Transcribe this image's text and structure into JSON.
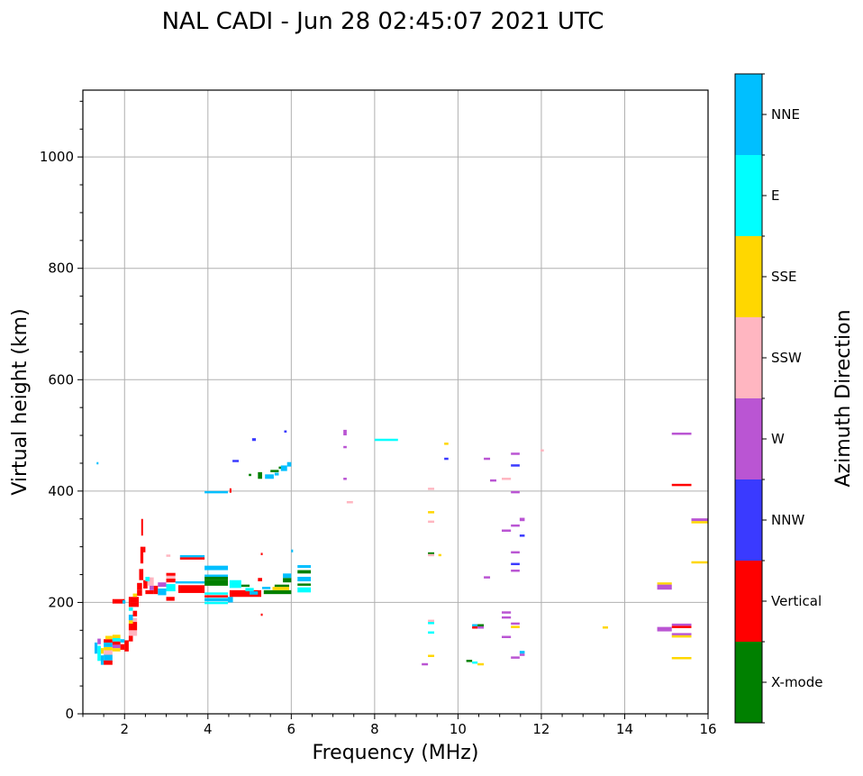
{
  "chart_data": {
    "type": "scatter",
    "title": "NAL CADI - Jun 28 02:45:07 2021 UTC",
    "xlabel": "Frequency (MHz)",
    "ylabel": "Virtual height (km)",
    "xlim": [
      1,
      16
    ],
    "ylim": [
      0,
      1120
    ],
    "grid": true,
    "x_ticks": [
      2,
      4,
      6,
      8,
      10,
      12,
      14,
      16
    ],
    "x_tick_labels": [
      "2",
      "4",
      "6",
      "8",
      "10",
      "12",
      "14",
      "16"
    ],
    "x_minor_step": 0.5,
    "y_ticks": [
      0,
      200,
      400,
      600,
      800,
      1000
    ],
    "y_tick_labels": [
      "0",
      "200",
      "400",
      "600",
      "800",
      "1000"
    ],
    "y_minor_step": 50,
    "colorbar": {
      "label": "Azimuth Direction",
      "placement": "right",
      "categories": [
        {
          "name": "NNE",
          "color": "#00bfff"
        },
        {
          "name": "E",
          "color": "#00ffff"
        },
        {
          "name": "SSE",
          "color": "#ffd700"
        },
        {
          "name": "SSW",
          "color": "#ffb6c1"
        },
        {
          "name": "W",
          "color": "#ba55d3"
        },
        {
          "name": "NNW",
          "color": "#3a3aff"
        },
        {
          "name": "Vertical",
          "color": "#ff0000"
        },
        {
          "name": "X-mode",
          "color": "#008000"
        }
      ]
    },
    "segment_fields": [
      "freq_start_MHz",
      "freq_end_MHz",
      "height_low_km",
      "height_high_km",
      "direction"
    ],
    "segments": [
      [
        1.28,
        1.35,
        108,
        128,
        "NNE"
      ],
      [
        1.35,
        1.43,
        95,
        122,
        "E"
      ],
      [
        1.35,
        1.43,
        125,
        135,
        "W"
      ],
      [
        1.43,
        1.5,
        88,
        105,
        "NNE"
      ],
      [
        1.43,
        1.5,
        108,
        118,
        "SSE"
      ],
      [
        1.5,
        1.71,
        88,
        96,
        "Vertical"
      ],
      [
        1.5,
        1.71,
        96,
        106,
        "NNE"
      ],
      [
        1.5,
        1.71,
        106,
        114,
        "SSW"
      ],
      [
        1.5,
        1.71,
        114,
        120,
        "SSE"
      ],
      [
        1.5,
        1.71,
        120,
        128,
        "NNE"
      ],
      [
        1.5,
        1.71,
        128,
        134,
        "Vertical"
      ],
      [
        1.54,
        1.71,
        134,
        140,
        "SSE"
      ],
      [
        1.71,
        1.9,
        112,
        118,
        "SSE"
      ],
      [
        1.71,
        1.9,
        118,
        124,
        "W"
      ],
      [
        1.71,
        1.9,
        124,
        130,
        "Vertical"
      ],
      [
        1.71,
        1.9,
        130,
        136,
        "E"
      ],
      [
        1.71,
        1.9,
        136,
        142,
        "SSE"
      ],
      [
        1.9,
        2.0,
        115,
        125,
        "Vertical"
      ],
      [
        1.9,
        2.0,
        128,
        134,
        "NNE"
      ],
      [
        2.0,
        2.1,
        112,
        132,
        "Vertical"
      ],
      [
        1.71,
        2.0,
        198,
        206,
        "Vertical"
      ],
      [
        1.95,
        2.02,
        198,
        204,
        "NNE"
      ],
      [
        2.1,
        2.2,
        130,
        140,
        "Vertical"
      ],
      [
        2.1,
        2.2,
        140,
        150,
        "SSW"
      ],
      [
        2.1,
        2.2,
        150,
        162,
        "Vertical"
      ],
      [
        2.1,
        2.2,
        162,
        168,
        "SSE"
      ],
      [
        2.1,
        2.2,
        168,
        178,
        "NNE"
      ],
      [
        2.2,
        2.3,
        140,
        150,
        "SSW"
      ],
      [
        2.2,
        2.3,
        150,
        165,
        "Vertical"
      ],
      [
        2.2,
        2.3,
        165,
        172,
        "SSW"
      ],
      [
        2.2,
        2.3,
        175,
        185,
        "Vertical"
      ],
      [
        2.1,
        2.2,
        185,
        191,
        "E"
      ],
      [
        2.1,
        2.34,
        192,
        200,
        "Vertical"
      ],
      [
        2.1,
        2.34,
        200,
        210,
        "Vertical"
      ],
      [
        2.2,
        2.3,
        210,
        216,
        "SSE"
      ],
      [
        2.3,
        2.42,
        212,
        222,
        "Vertical"
      ],
      [
        2.3,
        2.42,
        222,
        235,
        "Vertical"
      ],
      [
        2.35,
        2.45,
        240,
        260,
        "Vertical"
      ],
      [
        2.38,
        2.45,
        270,
        300,
        "Vertical"
      ],
      [
        2.4,
        2.44,
        320,
        350,
        "Vertical"
      ],
      [
        2.45,
        2.5,
        290,
        300,
        "Vertical"
      ],
      [
        2.45,
        2.55,
        225,
        240,
        "Vertical"
      ],
      [
        2.5,
        2.7,
        215,
        222,
        "Vertical"
      ],
      [
        2.55,
        2.7,
        230,
        245,
        "SSW"
      ],
      [
        2.5,
        2.6,
        238,
        246,
        "E"
      ],
      [
        2.6,
        2.7,
        222,
        230,
        "W"
      ],
      [
        2.7,
        2.8,
        215,
        230,
        "Vertical"
      ],
      [
        2.8,
        3.0,
        213,
        225,
        "NNE"
      ],
      [
        2.8,
        3.0,
        228,
        236,
        "W"
      ],
      [
        3.0,
        3.22,
        220,
        233,
        "E"
      ],
      [
        3.0,
        3.22,
        236,
        243,
        "Vertical"
      ],
      [
        3.0,
        3.22,
        244,
        248,
        "SSW"
      ],
      [
        3.0,
        3.22,
        248,
        253,
        "Vertical"
      ],
      [
        3.0,
        3.2,
        203,
        210,
        "Vertical"
      ],
      [
        3.0,
        3.1,
        282,
        286,
        "SSW"
      ],
      [
        3.29,
        3.92,
        217,
        231,
        "Vertical"
      ],
      [
        3.22,
        3.92,
        234,
        238,
        "NNE"
      ],
      [
        3.33,
        3.92,
        281,
        285,
        "NNE"
      ],
      [
        3.33,
        3.92,
        277,
        281,
        "Vertical"
      ],
      [
        3.92,
        4.48,
        258,
        266,
        "NNE"
      ],
      [
        3.92,
        4.48,
        246,
        250,
        "NNE"
      ],
      [
        3.92,
        4.48,
        241,
        246,
        "X-mode"
      ],
      [
        3.92,
        4.48,
        230,
        241,
        "X-mode"
      ],
      [
        3.92,
        4.48,
        214,
        218,
        "E"
      ],
      [
        3.92,
        4.48,
        209,
        213,
        "Vertical"
      ],
      [
        3.92,
        4.48,
        202,
        208,
        "NNE"
      ],
      [
        3.92,
        4.48,
        197,
        201,
        "E"
      ],
      [
        4.48,
        4.6,
        200,
        210,
        "NNE"
      ],
      [
        4.52,
        4.8,
        226,
        240,
        "E"
      ],
      [
        4.52,
        5.28,
        210,
        222,
        "Vertical"
      ],
      [
        4.8,
        5.0,
        228,
        232,
        "X-mode"
      ],
      [
        4.9,
        5.1,
        220,
        226,
        "E"
      ],
      [
        5.0,
        5.2,
        214,
        220,
        "NNE"
      ],
      [
        5.2,
        5.3,
        238,
        244,
        "Vertical"
      ],
      [
        5.3,
        5.5,
        224,
        228,
        "NNE"
      ],
      [
        5.34,
        6.0,
        215,
        222,
        "X-mode"
      ],
      [
        5.55,
        5.95,
        222,
        228,
        "SSE"
      ],
      [
        5.6,
        5.95,
        228,
        232,
        "X-mode"
      ],
      [
        5.8,
        6.0,
        236,
        244,
        "X-mode"
      ],
      [
        5.8,
        6.0,
        244,
        252,
        "NNE"
      ],
      [
        6.15,
        6.47,
        262,
        267,
        "NNE"
      ],
      [
        6.15,
        6.47,
        252,
        258,
        "X-mode"
      ],
      [
        6.15,
        6.47,
        238,
        246,
        "NNE"
      ],
      [
        6.15,
        6.47,
        231,
        234,
        "X-mode"
      ],
      [
        6.15,
        6.47,
        218,
        227,
        "E"
      ],
      [
        5.27,
        5.3,
        176,
        180,
        "Vertical"
      ],
      [
        5.27,
        5.3,
        285,
        289,
        "Vertical"
      ],
      [
        6.0,
        6.03,
        290,
        295,
        "NNE"
      ],
      [
        1.33,
        1.36,
        449,
        452,
        "NNE"
      ],
      [
        3.92,
        4.48,
        396,
        400,
        "NNE"
      ],
      [
        4.52,
        4.56,
        397,
        405,
        "Vertical"
      ],
      [
        4.59,
        4.74,
        452,
        456,
        "NNW"
      ],
      [
        5.06,
        5.15,
        490,
        495,
        "NNW"
      ],
      [
        5.83,
        5.89,
        506,
        509,
        "NNW"
      ],
      [
        4.98,
        5.04,
        428,
        431,
        "X-mode"
      ],
      [
        5.2,
        5.3,
        422,
        434,
        "X-mode"
      ],
      [
        5.37,
        5.58,
        422,
        430,
        "NNE"
      ],
      [
        5.5,
        5.7,
        434,
        438,
        "X-mode"
      ],
      [
        5.6,
        5.7,
        428,
        433,
        "NNE"
      ],
      [
        5.7,
        5.78,
        440,
        444,
        "X-mode"
      ],
      [
        5.75,
        5.9,
        436,
        446,
        "NNE"
      ],
      [
        5.9,
        6.0,
        444,
        452,
        "NNE"
      ],
      [
        7.25,
        7.33,
        500,
        510,
        "W"
      ],
      [
        7.25,
        7.33,
        477,
        481,
        "W"
      ],
      [
        7.25,
        7.33,
        420,
        424,
        "W"
      ],
      [
        7.33,
        7.48,
        378,
        382,
        "SSW"
      ],
      [
        8.0,
        8.56,
        490,
        494,
        "E"
      ],
      [
        9.67,
        9.77,
        483,
        487,
        "SSE"
      ],
      [
        9.67,
        9.77,
        456,
        460,
        "NNW"
      ],
      [
        9.28,
        9.43,
        402,
        406,
        "SSW"
      ],
      [
        9.28,
        9.43,
        360,
        364,
        "SSE"
      ],
      [
        9.28,
        9.43,
        343,
        347,
        "SSW"
      ],
      [
        9.28,
        9.43,
        287,
        290,
        "X-mode"
      ],
      [
        9.28,
        9.43,
        283,
        287,
        "SSW"
      ],
      [
        9.53,
        9.6,
        283,
        287,
        "SSE"
      ],
      [
        10.62,
        10.77,
        456,
        460,
        "W"
      ],
      [
        11.27,
        11.48,
        465,
        469,
        "W"
      ],
      [
        11.27,
        11.48,
        444,
        448,
        "NNW"
      ],
      [
        10.77,
        10.92,
        417,
        421,
        "W"
      ],
      [
        11.05,
        11.27,
        420,
        424,
        "SSW"
      ],
      [
        11.27,
        11.48,
        396,
        400,
        "W"
      ],
      [
        11.48,
        11.6,
        346,
        352,
        "W"
      ],
      [
        11.27,
        11.48,
        336,
        340,
        "W"
      ],
      [
        11.05,
        11.27,
        328,
        331,
        "W"
      ],
      [
        11.48,
        11.6,
        318,
        322,
        "NNW"
      ],
      [
        11.27,
        11.48,
        288,
        292,
        "W"
      ],
      [
        11.27,
        11.48,
        267,
        271,
        "NNW"
      ],
      [
        11.27,
        11.48,
        255,
        259,
        "W"
      ],
      [
        10.62,
        10.77,
        244,
        247,
        "W"
      ],
      [
        11.98,
        12.06,
        472,
        475,
        "SSW"
      ],
      [
        9.28,
        9.43,
        165,
        169,
        "SSW"
      ],
      [
        9.28,
        9.43,
        161,
        165,
        "E"
      ],
      [
        9.28,
        9.43,
        144,
        148,
        "E"
      ],
      [
        9.28,
        9.43,
        102,
        106,
        "SSE"
      ],
      [
        9.13,
        9.28,
        87,
        91,
        "W"
      ],
      [
        10.34,
        10.47,
        157,
        161,
        "NNE"
      ],
      [
        10.47,
        10.62,
        157,
        161,
        "X-mode"
      ],
      [
        10.34,
        10.47,
        154,
        157,
        "Vertical"
      ],
      [
        10.47,
        10.62,
        154,
        157,
        "W"
      ],
      [
        11.05,
        11.27,
        181,
        184,
        "W"
      ],
      [
        11.05,
        11.27,
        171,
        175,
        "W"
      ],
      [
        11.27,
        11.48,
        161,
        164,
        "W"
      ],
      [
        11.27,
        11.48,
        154,
        158,
        "SSE"
      ],
      [
        11.05,
        11.27,
        136,
        140,
        "W"
      ],
      [
        11.48,
        11.6,
        108,
        113,
        "NNE"
      ],
      [
        11.48,
        11.6,
        105,
        108,
        "W"
      ],
      [
        11.27,
        11.48,
        99,
        103,
        "W"
      ],
      [
        10.2,
        10.34,
        93,
        97,
        "X-mode"
      ],
      [
        10.34,
        10.47,
        90,
        94,
        "E"
      ],
      [
        10.47,
        10.62,
        87,
        91,
        "SSE"
      ],
      [
        15.13,
        15.6,
        501,
        505,
        "W"
      ],
      [
        15.13,
        15.6,
        409,
        413,
        "Vertical"
      ],
      [
        15.6,
        16.0,
        346,
        351,
        "W"
      ],
      [
        15.6,
        16.0,
        342,
        346,
        "SSE"
      ],
      [
        15.6,
        16.0,
        270,
        274,
        "SSE"
      ],
      [
        14.78,
        15.13,
        232,
        236,
        "SSE"
      ],
      [
        14.78,
        15.13,
        223,
        232,
        "W"
      ],
      [
        13.47,
        13.6,
        153,
        157,
        "SSE"
      ],
      [
        15.13,
        15.6,
        158,
        162,
        "W"
      ],
      [
        15.13,
        15.6,
        154,
        158,
        "Vertical"
      ],
      [
        14.78,
        15.13,
        148,
        156,
        "W"
      ],
      [
        15.13,
        15.6,
        141,
        145,
        "W"
      ],
      [
        15.13,
        15.6,
        139,
        141,
        "SSE"
      ],
      [
        15.13,
        15.6,
        98,
        102,
        "SSE"
      ]
    ]
  }
}
